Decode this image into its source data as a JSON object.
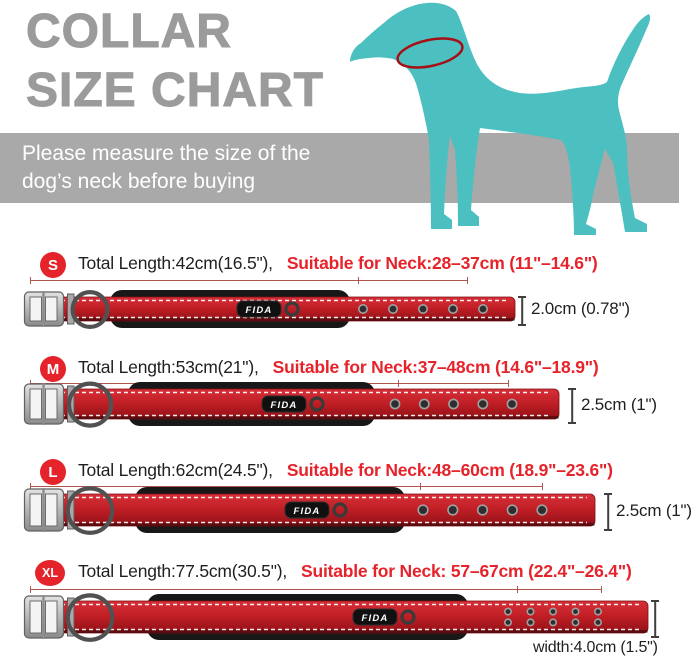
{
  "title": {
    "line1": "COLLAR",
    "line2": "SIZE CHART"
  },
  "banner": {
    "line1": "Please measure the size of the",
    "line2": "dog’s neck before buying"
  },
  "brand": "FIDA",
  "colors": {
    "dog_teal": "#4cc0c0",
    "banner_gray": "#a9a9a9",
    "title_gray": "#9b9b9b",
    "accent_red": "#e6232a",
    "collar_red": "#c9242b",
    "neck_ring_red": "#a50f15"
  },
  "sizes": [
    {
      "badge": "S",
      "total_length": "Total Length:42cm(16.5\"),",
      "neck_range": "Suitable for Neck:28–37cm (11\"–14.6\")",
      "width_label": "2.0cm (0.78\")"
    },
    {
      "badge": "M",
      "total_length": "Total Length:53cm(21\"),",
      "neck_range": "Suitable for Neck:37–48cm (14.6\"–18.9\")",
      "width_label": "2.5cm (1\")"
    },
    {
      "badge": "L",
      "total_length": "Total Length:62cm(24.5\"),",
      "neck_range": "Suitable for Neck:48–60cm (18.9\"–23.6\")",
      "width_label": "2.5cm (1\")"
    },
    {
      "badge": "XL",
      "total_length": "Total Length:77.5cm(30.5\"),",
      "neck_range": "Suitable for Neck: 57–67cm (22.4\"–26.4\")",
      "width_label": "width:4.0cm (1.5\")"
    }
  ]
}
